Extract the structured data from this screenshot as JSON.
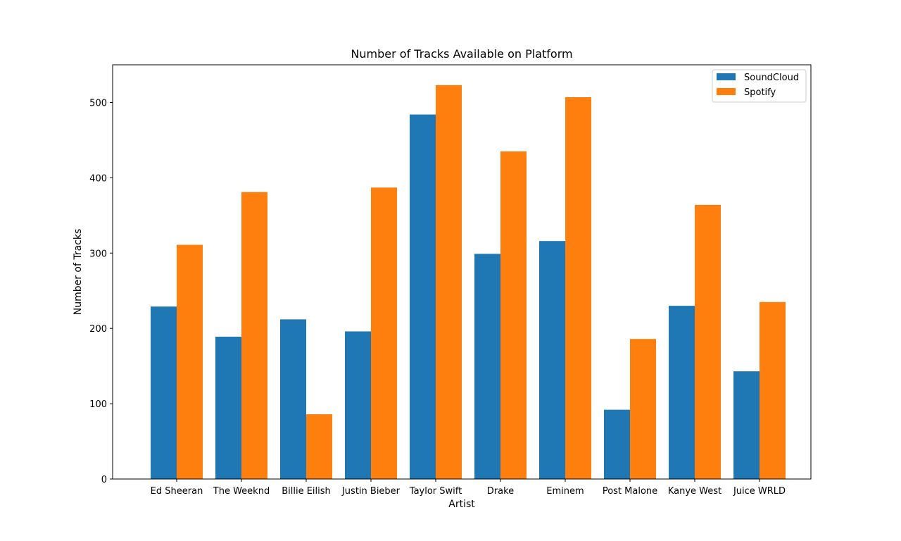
{
  "chart_data": {
    "type": "bar",
    "title": "Number of Tracks Available on Platform",
    "xlabel": "Artist",
    "ylabel": "Number of Tracks",
    "categories": [
      "Ed Sheeran",
      "The Weeknd",
      "Billie Eilish",
      "Justin Bieber",
      "Taylor Swift",
      "Drake",
      "Eminem",
      "Post Malone",
      "Kanye West",
      "Juice WRLD"
    ],
    "series": [
      {
        "name": "SoundCloud",
        "color": "#1f77b4",
        "values": [
          229,
          189,
          212,
          196,
          484,
          299,
          316,
          92,
          230,
          143
        ]
      },
      {
        "name": "Spotify",
        "color": "#ff7f0e",
        "values": [
          311,
          381,
          86,
          387,
          523,
          435,
          507,
          186,
          364,
          235
        ]
      }
    ],
    "ylim": [
      0,
      550
    ],
    "yticks": [
      0,
      100,
      200,
      300,
      400,
      500
    ],
    "grid": false,
    "legend_position": "top-right"
  }
}
